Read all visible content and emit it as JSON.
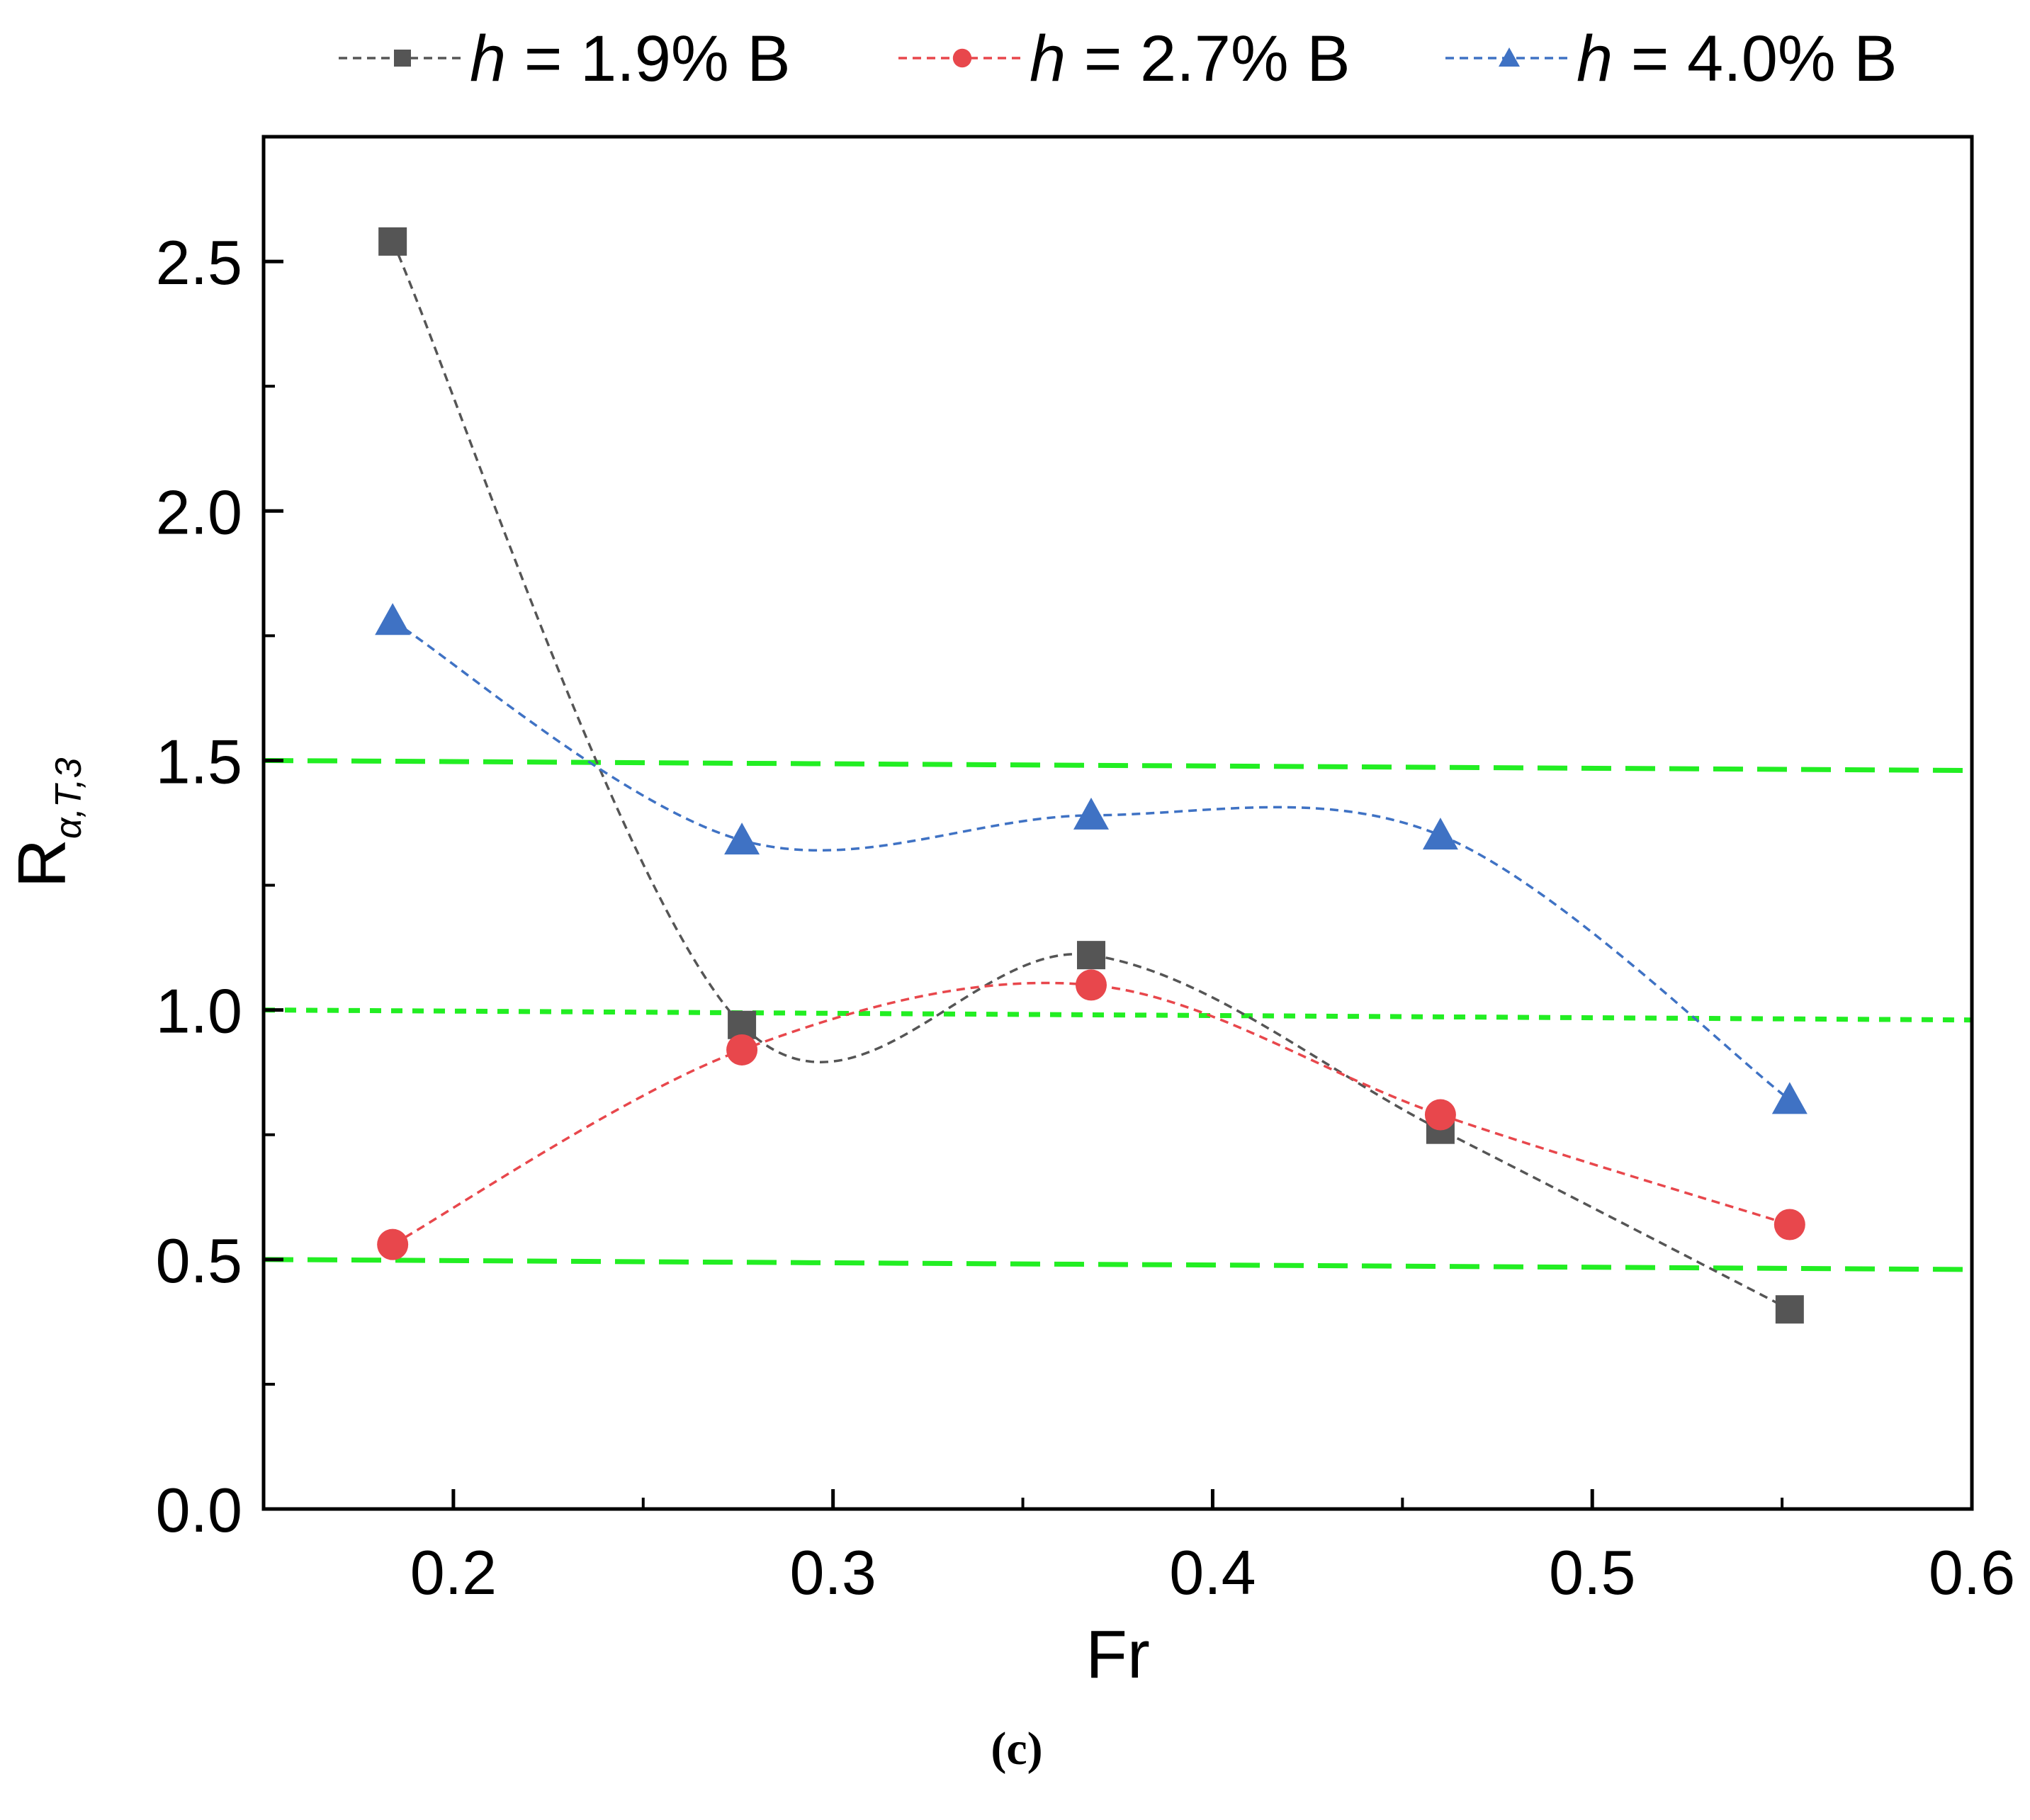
{
  "chart_data": {
    "type": "line",
    "xlabel": "Fr",
    "ylabel_main": "R",
    "ylabel_sub": "α,T,3",
    "xlim": [
      0.15,
      0.6
    ],
    "ylim": [
      0.0,
      2.75
    ],
    "xticks": [
      0.2,
      0.3,
      0.4,
      0.5,
      0.6
    ],
    "xtick_labels": [
      "0.2",
      "0.3",
      "0.4",
      "0.5",
      "0.6"
    ],
    "yticks": [
      0.0,
      0.5,
      1.0,
      1.5,
      2.0,
      2.5
    ],
    "ytick_labels": [
      "0.0",
      "0.5",
      "1.0",
      "1.5",
      "2.0",
      "2.5"
    ],
    "x": [
      0.184,
      0.276,
      0.368,
      0.46,
      0.552
    ],
    "series": [
      {
        "name": "h = 1.9% B",
        "legend_var": "h",
        "legend_rest": "= 1.9% B",
        "marker": "square",
        "color": "#555555",
        "values": [
          2.54,
          0.97,
          1.11,
          0.76,
          0.4
        ]
      },
      {
        "name": "h = 2.7% B",
        "legend_var": "h",
        "legend_rest": "= 2.7% B",
        "marker": "circle",
        "color": "#e8474c",
        "values": [
          0.53,
          0.92,
          1.05,
          0.79,
          0.57
        ]
      },
      {
        "name": "h = 4.0% B",
        "legend_var": "h",
        "legend_rest": "= 4.0% B",
        "marker": "triangle",
        "color": "#3f72c4",
        "values": [
          1.78,
          1.34,
          1.39,
          1.35,
          0.82
        ]
      }
    ],
    "reference_lines": [
      {
        "y_start": 1.5,
        "y_end": 1.48,
        "style": "long-dash",
        "color": "#22ee22"
      },
      {
        "y_start": 1.0,
        "y_end": 0.98,
        "style": "short-dash",
        "color": "#22ee22"
      },
      {
        "y_start": 0.5,
        "y_end": 0.48,
        "style": "long-dash",
        "color": "#22ee22"
      }
    ],
    "legend_position": "top",
    "caption": "(c)"
  }
}
